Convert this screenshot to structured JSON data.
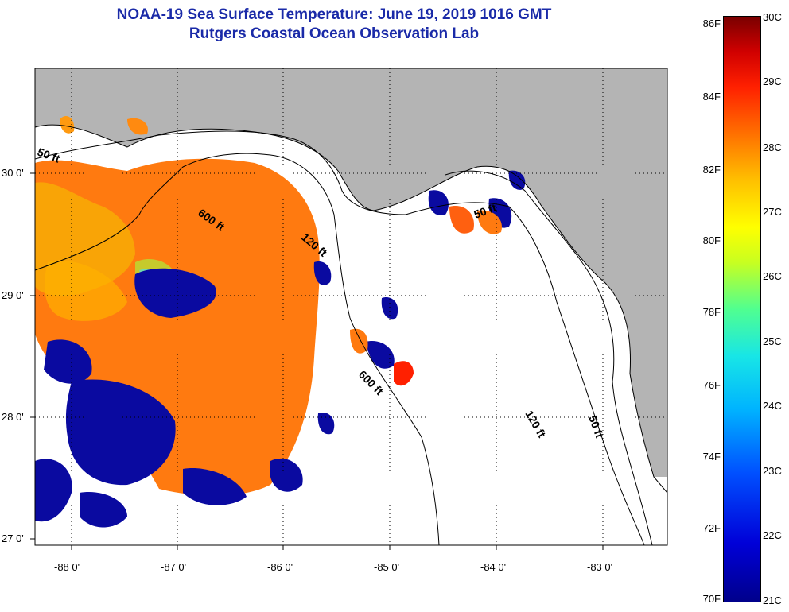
{
  "title_line1": "NOAA-19 Sea Surface Temperature:  June 19, 2019 1016 GMT",
  "title_line2": "Rutgers Coastal Ocean Observation Lab",
  "lat_labels": [
    "30 0'",
    "29 0'",
    "28 0'",
    "27 0'"
  ],
  "lon_labels": [
    "-88 0'",
    "-87 0'",
    "-86 0'",
    "-85 0'",
    "-84 0'",
    "-83 0'"
  ],
  "depth_labels": [
    "50 ft",
    "600 ft",
    "120 ft",
    "50 ft",
    "600 ft",
    "120 ft",
    "50 ft"
  ],
  "colorbar": {
    "fahrenheit": [
      "86F",
      "84F",
      "82F",
      "80F",
      "78F",
      "76F",
      "74F",
      "72F",
      "70F"
    ],
    "celsius": [
      "30C",
      "29C",
      "28C",
      "27C",
      "26C",
      "25C",
      "24C",
      "23C",
      "22C",
      "21C"
    ]
  },
  "colors": {
    "title": "#1a2aa8",
    "land": "#b4b4b4",
    "cloud": "#ffffff"
  }
}
